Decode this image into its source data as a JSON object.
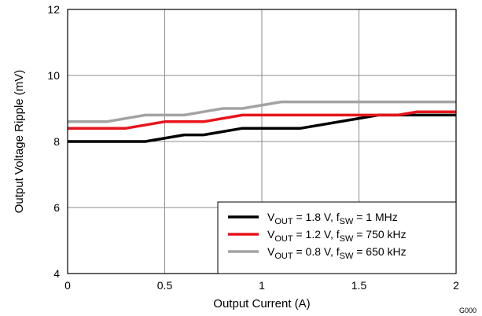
{
  "chart_data": {
    "type": "line",
    "xlabel": "Output Current (A)",
    "ylabel": "Output Voltage Ripple (mV)",
    "xlim": [
      0,
      2
    ],
    "ylim": [
      4,
      12
    ],
    "x_ticks": [
      "0",
      "0.5",
      "1",
      "1.5",
      "2"
    ],
    "y_ticks": [
      "4",
      "6",
      "8",
      "10",
      "12"
    ],
    "grid": true,
    "legend_position": "bottom-right",
    "corner_code": "G000",
    "series": [
      {
        "name": "V_OUT = 1.8 V, f_SW = 1 MHz",
        "legend": {
          "a": "V",
          "a_sub": "OUT",
          "b": " = 1.8 V, f",
          "b_sub": "SW",
          "c": " = 1 MHz"
        },
        "color": "#000000",
        "x": [
          0,
          0.4,
          0.6,
          0.7,
          0.9,
          1.2,
          1.5,
          1.6,
          2.0
        ],
        "y": [
          8.0,
          8.0,
          8.2,
          8.2,
          8.4,
          8.4,
          8.7,
          8.8,
          8.8
        ]
      },
      {
        "name": "V_OUT = 1.2 V, f_SW = 750 kHz",
        "legend": {
          "a": "V",
          "a_sub": "OUT",
          "b": " = 1.2 V, f",
          "b_sub": "SW",
          "c": " = 750 kHz"
        },
        "color": "#e8141c",
        "x": [
          0,
          0.3,
          0.5,
          0.7,
          0.9,
          1.7,
          1.8,
          2.0
        ],
        "y": [
          8.4,
          8.4,
          8.6,
          8.6,
          8.8,
          8.8,
          8.9,
          8.9
        ]
      },
      {
        "name": "V_OUT = 0.8 V, f_SW = 650 kHz",
        "legend": {
          "a": "V",
          "a_sub": "OUT",
          "b": " = 0.8 V, f",
          "b_sub": "SW",
          "c": " = 650 kHz"
        },
        "color": "#a3a3a3",
        "x": [
          0,
          0.2,
          0.4,
          0.6,
          0.8,
          0.9,
          1.1,
          2.0
        ],
        "y": [
          8.6,
          8.6,
          8.8,
          8.8,
          9.0,
          9.0,
          9.2,
          9.2
        ]
      }
    ]
  }
}
